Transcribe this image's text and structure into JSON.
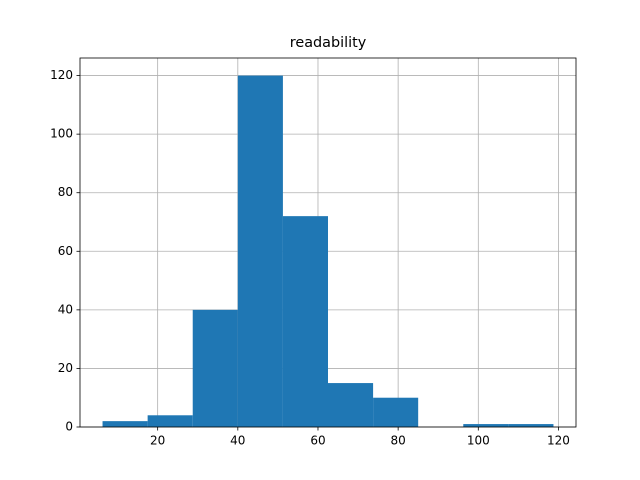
{
  "chart_data": {
    "type": "histogram",
    "title": "readability",
    "bins": [
      6.25,
      17.5,
      28.75,
      40,
      51.25,
      62.5,
      73.75,
      85,
      96.25,
      107.5,
      118.75
    ],
    "values": [
      2,
      4,
      40,
      120,
      72,
      15,
      10,
      0,
      1,
      1
    ],
    "color": "#1f77b4",
    "xlim": [
      0.625,
      124.375
    ],
    "xticks": [
      20,
      40,
      60,
      80,
      100,
      120
    ],
    "ylim": [
      0,
      126
    ],
    "yticks": [
      0,
      20,
      40,
      60,
      80,
      100,
      120
    ],
    "grid": true
  }
}
